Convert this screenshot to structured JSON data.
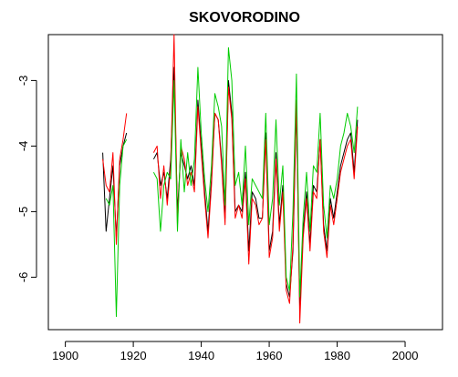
{
  "chart_data": {
    "type": "line",
    "title": "SKOVORODINO",
    "xlabel": "",
    "ylabel": "",
    "xlim": [
      1895,
      2011
    ],
    "ylim": [
      -6.8,
      -2.3
    ],
    "x_ticks": [
      1900,
      1920,
      1940,
      1960,
      1980,
      2000
    ],
    "y_ticks": [
      -3,
      -4,
      -5,
      -6
    ],
    "grid": false,
    "legend": "none",
    "series": [
      {
        "color": "#000000",
        "segments": [
          [
            [
              1911,
              -4.1
            ],
            [
              1912,
              -5.3
            ],
            [
              1913,
              -4.8
            ],
            [
              1914,
              -4.3
            ],
            [
              1915,
              -5.4
            ],
            [
              1916,
              -4.3
            ],
            [
              1917,
              -4.0
            ],
            [
              1918,
              -3.8
            ]
          ],
          [
            [
              1926,
              -4.2
            ],
            [
              1927,
              -4.1
            ],
            [
              1928,
              -4.6
            ],
            [
              1929,
              -4.4
            ],
            [
              1930,
              -4.8
            ],
            [
              1931,
              -4.2
            ],
            [
              1932,
              -2.8
            ],
            [
              1933,
              -5.0
            ],
            [
              1934,
              -4.1
            ],
            [
              1935,
              -4.3
            ],
            [
              1936,
              -4.5
            ],
            [
              1937,
              -4.3
            ],
            [
              1938,
              -4.6
            ],
            [
              1939,
              -3.3
            ],
            [
              1940,
              -4.0
            ],
            [
              1941,
              -4.7
            ],
            [
              1942,
              -5.3
            ],
            [
              1943,
              -4.5
            ],
            [
              1944,
              -3.5
            ],
            [
              1945,
              -3.6
            ],
            [
              1946,
              -4.2
            ],
            [
              1947,
              -5.1
            ],
            [
              1948,
              -3.0
            ],
            [
              1949,
              -3.5
            ],
            [
              1950,
              -5.0
            ],
            [
              1951,
              -4.9
            ],
            [
              1952,
              -5.0
            ],
            [
              1953,
              -4.4
            ],
            [
              1954,
              -5.6
            ],
            [
              1955,
              -4.7
            ],
            [
              1956,
              -4.8
            ],
            [
              1957,
              -5.1
            ],
            [
              1958,
              -5.1
            ],
            [
              1959,
              -3.8
            ],
            [
              1960,
              -5.6
            ],
            [
              1961,
              -5.3
            ],
            [
              1962,
              -4.1
            ],
            [
              1963,
              -5.2
            ],
            [
              1964,
              -4.6
            ],
            [
              1965,
              -6.1
            ],
            [
              1966,
              -6.3
            ],
            [
              1967,
              -5.6
            ],
            [
              1968,
              -3.4
            ],
            [
              1969,
              -6.5
            ],
            [
              1970,
              -5.3
            ],
            [
              1971,
              -4.7
            ],
            [
              1972,
              -5.5
            ],
            [
              1973,
              -4.6
            ],
            [
              1974,
              -4.7
            ],
            [
              1975,
              -3.9
            ],
            [
              1976,
              -5.2
            ],
            [
              1977,
              -5.6
            ],
            [
              1978,
              -4.8
            ],
            [
              1979,
              -5.1
            ],
            [
              1980,
              -4.7
            ],
            [
              1981,
              -4.3
            ],
            [
              1982,
              -4.1
            ],
            [
              1983,
              -3.9
            ],
            [
              1984,
              -3.8
            ],
            [
              1985,
              -4.4
            ],
            [
              1986,
              -3.6
            ]
          ]
        ]
      },
      {
        "color": "#ff0000",
        "segments": [
          [
            [
              1911,
              -4.2
            ],
            [
              1912,
              -4.6
            ],
            [
              1913,
              -4.7
            ],
            [
              1914,
              -4.1
            ],
            [
              1915,
              -5.5
            ],
            [
              1916,
              -4.2
            ],
            [
              1917,
              -3.9
            ],
            [
              1918,
              -3.5
            ]
          ],
          [
            [
              1926,
              -4.1
            ],
            [
              1927,
              -4.0
            ],
            [
              1928,
              -4.8
            ],
            [
              1929,
              -4.3
            ],
            [
              1930,
              -4.9
            ],
            [
              1931,
              -4.3
            ],
            [
              1932,
              -2.3
            ],
            [
              1933,
              -5.2
            ],
            [
              1934,
              -4.0
            ],
            [
              1935,
              -4.2
            ],
            [
              1936,
              -4.6
            ],
            [
              1937,
              -4.4
            ],
            [
              1938,
              -4.7
            ],
            [
              1939,
              -3.4
            ],
            [
              1940,
              -4.1
            ],
            [
              1941,
              -4.8
            ],
            [
              1942,
              -5.4
            ],
            [
              1943,
              -4.6
            ],
            [
              1944,
              -3.5
            ],
            [
              1945,
              -3.6
            ],
            [
              1946,
              -4.3
            ],
            [
              1947,
              -5.2
            ],
            [
              1948,
              -3.1
            ],
            [
              1949,
              -3.6
            ],
            [
              1950,
              -5.1
            ],
            [
              1951,
              -4.9
            ],
            [
              1952,
              -5.1
            ],
            [
              1953,
              -4.5
            ],
            [
              1954,
              -5.8
            ],
            [
              1955,
              -4.8
            ],
            [
              1956,
              -4.9
            ],
            [
              1957,
              -5.2
            ],
            [
              1958,
              -5.1
            ],
            [
              1959,
              -3.9
            ],
            [
              1960,
              -5.7
            ],
            [
              1961,
              -5.4
            ],
            [
              1962,
              -4.2
            ],
            [
              1963,
              -5.3
            ],
            [
              1964,
              -4.7
            ],
            [
              1965,
              -6.2
            ],
            [
              1966,
              -6.4
            ],
            [
              1967,
              -5.5
            ],
            [
              1968,
              -3.3
            ],
            [
              1969,
              -6.7
            ],
            [
              1970,
              -5.4
            ],
            [
              1971,
              -4.8
            ],
            [
              1972,
              -5.6
            ],
            [
              1973,
              -4.7
            ],
            [
              1974,
              -4.8
            ],
            [
              1975,
              -3.9
            ],
            [
              1976,
              -5.3
            ],
            [
              1977,
              -5.7
            ],
            [
              1978,
              -4.9
            ],
            [
              1979,
              -5.2
            ],
            [
              1980,
              -4.8
            ],
            [
              1981,
              -4.4
            ],
            [
              1982,
              -4.2
            ],
            [
              1983,
              -4.0
            ],
            [
              1984,
              -3.9
            ],
            [
              1985,
              -4.5
            ],
            [
              1986,
              -3.7
            ]
          ]
        ]
      },
      {
        "color": "#00cc00",
        "segments": [
          [
            [
              1912,
              -4.8
            ],
            [
              1913,
              -4.9
            ],
            [
              1914,
              -4.6
            ],
            [
              1915,
              -6.6
            ],
            [
              1916,
              -4.6
            ],
            [
              1917,
              -4.0
            ],
            [
              1918,
              -3.9
            ]
          ],
          [
            [
              1926,
              -4.4
            ],
            [
              1927,
              -4.5
            ],
            [
              1928,
              -5.3
            ],
            [
              1929,
              -4.6
            ],
            [
              1930,
              -4.4
            ],
            [
              1931,
              -4.5
            ],
            [
              1932,
              -3.0
            ],
            [
              1933,
              -5.3
            ],
            [
              1934,
              -3.9
            ],
            [
              1935,
              -4.7
            ],
            [
              1936,
              -4.1
            ],
            [
              1937,
              -4.6
            ],
            [
              1938,
              -4.2
            ],
            [
              1939,
              -2.8
            ],
            [
              1940,
              -3.8
            ],
            [
              1941,
              -4.5
            ],
            [
              1942,
              -5.0
            ],
            [
              1943,
              -4.3
            ],
            [
              1944,
              -3.2
            ],
            [
              1945,
              -3.4
            ],
            [
              1946,
              -3.7
            ],
            [
              1947,
              -4.9
            ],
            [
              1948,
              -2.5
            ],
            [
              1949,
              -3.0
            ],
            [
              1950,
              -4.6
            ],
            [
              1951,
              -4.4
            ],
            [
              1952,
              -4.9
            ],
            [
              1953,
              -4.0
            ],
            [
              1954,
              -5.2
            ],
            [
              1955,
              -4.5
            ],
            [
              1956,
              -4.6
            ],
            [
              1957,
              -4.7
            ],
            [
              1958,
              -4.8
            ],
            [
              1959,
              -3.5
            ],
            [
              1960,
              -5.2
            ],
            [
              1961,
              -4.8
            ],
            [
              1962,
              -3.6
            ],
            [
              1963,
              -4.9
            ],
            [
              1964,
              -4.3
            ],
            [
              1965,
              -6.0
            ],
            [
              1966,
              -6.2
            ],
            [
              1967,
              -5.0
            ],
            [
              1968,
              -2.9
            ],
            [
              1969,
              -6.3
            ],
            [
              1970,
              -5.1
            ],
            [
              1971,
              -4.4
            ],
            [
              1972,
              -5.3
            ],
            [
              1973,
              -4.3
            ],
            [
              1974,
              -4.4
            ],
            [
              1975,
              -3.5
            ],
            [
              1976,
              -4.9
            ],
            [
              1977,
              -5.4
            ],
            [
              1978,
              -4.6
            ],
            [
              1979,
              -4.8
            ],
            [
              1980,
              -4.5
            ],
            [
              1981,
              -4.0
            ],
            [
              1982,
              -3.8
            ],
            [
              1983,
              -3.5
            ],
            [
              1984,
              -3.7
            ],
            [
              1985,
              -4.1
            ],
            [
              1986,
              -3.4
            ]
          ]
        ]
      }
    ]
  }
}
